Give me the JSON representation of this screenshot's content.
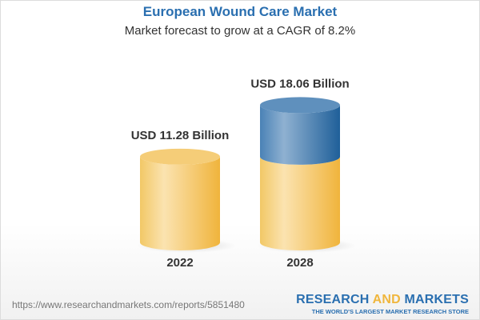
{
  "header": {
    "title": "European Wound Care Market",
    "subtitle": "Market forecast to grow at a CAGR of 8.2%"
  },
  "chart_data": {
    "type": "bar",
    "style": "3d-cylinder",
    "categories": [
      "2022",
      "2028"
    ],
    "values": [
      11.28,
      18.06
    ],
    "data_labels": [
      "USD 11.28 Billion",
      "USD 18.06 Billion"
    ],
    "unit": "USD Billion",
    "grid": false,
    "colors": {
      "base": "#f3c55e",
      "growth": "#3f7fb5"
    }
  },
  "footer": {
    "url": "https://www.researchandmarkets.com/reports/5851480",
    "logo_part1": "RESEARCH ",
    "logo_part2": "AND",
    "logo_part3": " MARKETS",
    "tagline": "THE WORLD'S LARGEST MARKET RESEARCH STORE"
  }
}
